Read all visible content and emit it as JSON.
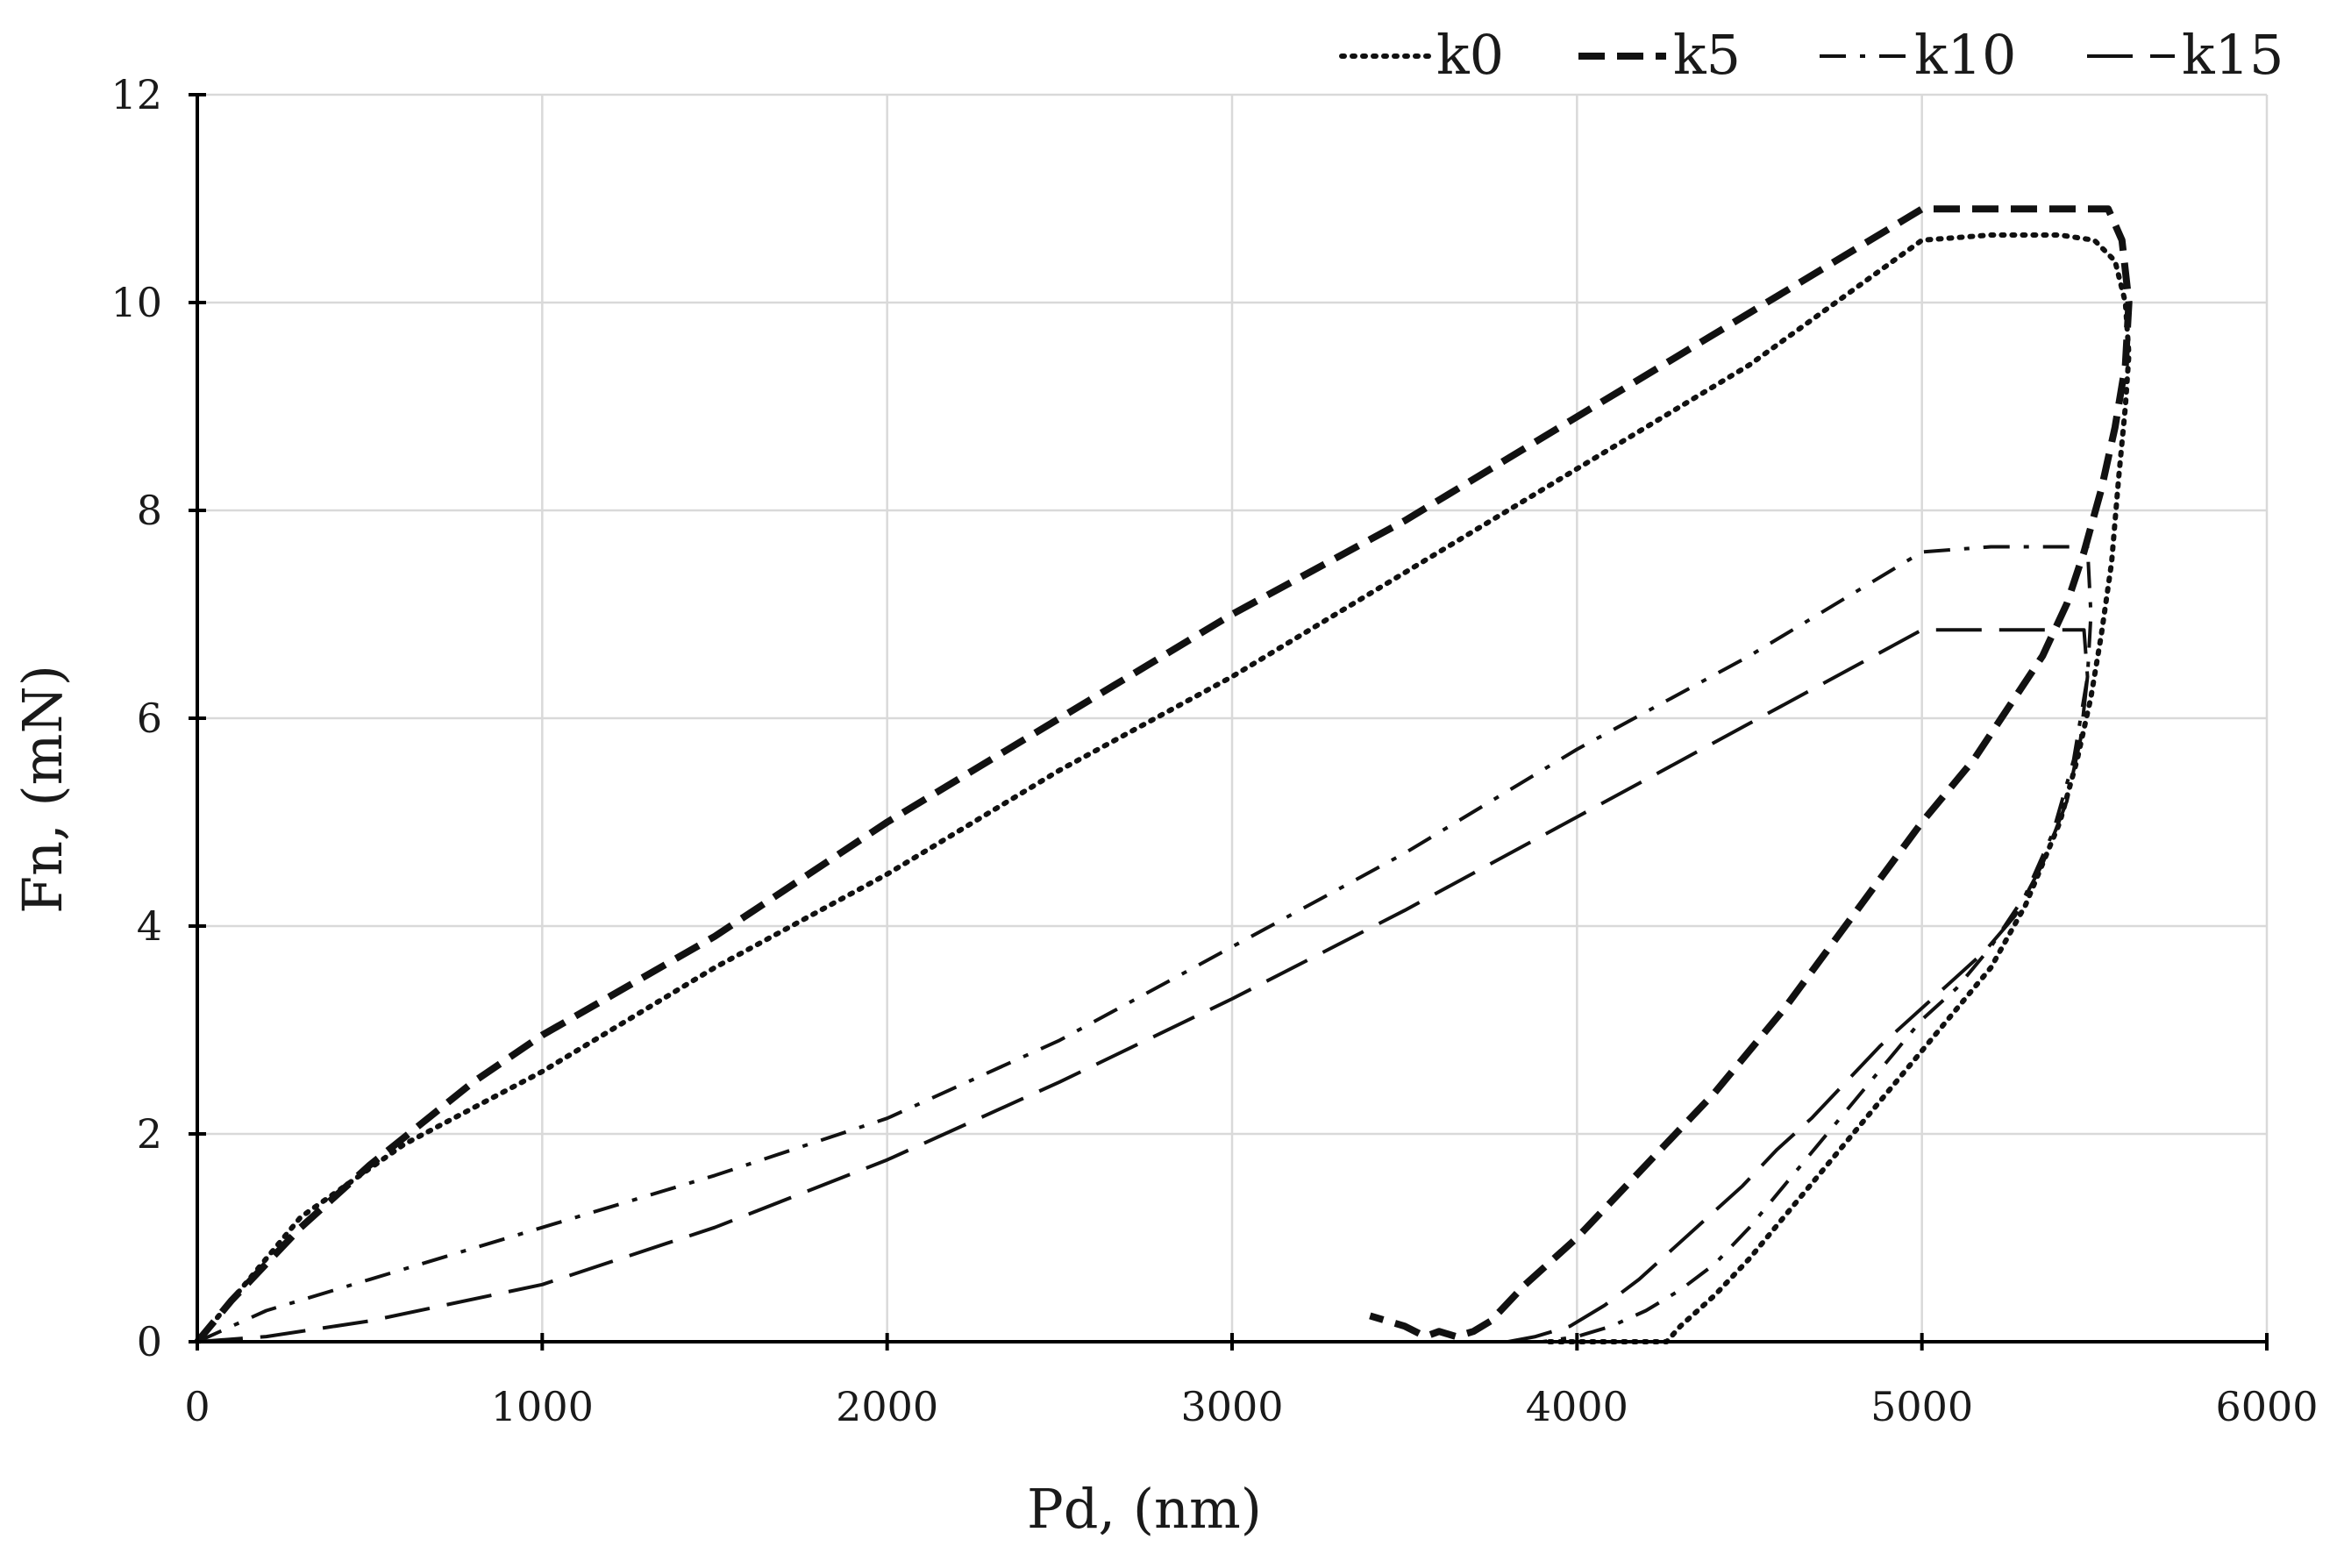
{
  "chart_data": {
    "type": "line",
    "title": "",
    "xlabel": "Pd, (nm)",
    "ylabel": "Fn, (mN)",
    "xlim": [
      0,
      6000
    ],
    "ylim": [
      0,
      12
    ],
    "xticks": [
      0,
      1000,
      2000,
      3000,
      4000,
      5000,
      6000
    ],
    "yticks": [
      0,
      2,
      4,
      6,
      8,
      10,
      12
    ],
    "xtick_labels": [
      "0",
      "1000",
      "2000",
      "3000",
      "4000",
      "5000",
      "6000"
    ],
    "ytick_labels": [
      "0",
      "2",
      "4",
      "6",
      "8",
      "10",
      "12"
    ],
    "grid": true,
    "legend_position": "top-right",
    "line_color": "#111111",
    "series": [
      {
        "name": "k0",
        "style": "dotted",
        "x": [
          0,
          100,
          300,
          600,
          1000,
          1500,
          2000,
          2500,
          3000,
          3500,
          4000,
          4500,
          5000,
          5200,
          5400,
          5500,
          5560,
          5590,
          5600,
          5590,
          5570,
          5550,
          5520,
          5490,
          5450,
          5400,
          5300,
          5200,
          5100,
          5000,
          4900,
          4800,
          4700,
          4600,
          4500,
          4400,
          4300,
          4260,
          4100,
          3900
        ],
        "y": [
          0,
          0.4,
          1.2,
          1.9,
          2.6,
          3.6,
          4.5,
          5.5,
          6.4,
          7.4,
          8.4,
          9.4,
          10.6,
          10.65,
          10.65,
          10.6,
          10.4,
          10.0,
          9.5,
          9.0,
          8.3,
          7.5,
          6.8,
          6.2,
          5.6,
          5.0,
          4.2,
          3.6,
          3.2,
          2.8,
          2.4,
          2.0,
          1.6,
          1.2,
          0.8,
          0.45,
          0.15,
          0.0,
          0.0,
          0.0
        ]
      },
      {
        "name": "k5",
        "style": "dashed",
        "x": [
          0,
          100,
          300,
          500,
          800,
          1000,
          1500,
          2000,
          2500,
          3000,
          3500,
          4000,
          4500,
          5000,
          5200,
          5400,
          5540,
          5580,
          5600,
          5590,
          5560,
          5520,
          5470,
          5420,
          5350,
          5250,
          5150,
          5000,
          4800,
          4600,
          4400,
          4200,
          4000,
          3850,
          3750,
          3700,
          3650,
          3600,
          3560,
          3500,
          3400
        ],
        "y": [
          0,
          0.4,
          1.1,
          1.7,
          2.5,
          2.95,
          3.9,
          5.0,
          6.0,
          7.0,
          7.9,
          8.9,
          9.9,
          10.9,
          10.9,
          10.9,
          10.9,
          10.6,
          10.0,
          9.4,
          8.8,
          8.2,
          7.6,
          7.1,
          6.6,
          6.1,
          5.6,
          5.0,
          4.1,
          3.2,
          2.4,
          1.7,
          1.0,
          0.55,
          0.2,
          0.1,
          0.05,
          0.1,
          0.05,
          0.15,
          0.25
        ]
      },
      {
        "name": "k10",
        "style": "dash-dot",
        "x": [
          0,
          200,
          500,
          1000,
          1500,
          2000,
          2500,
          3000,
          3500,
          4000,
          4500,
          5000,
          5200,
          5400,
          5480,
          5490,
          5480,
          5440,
          5380,
          5300,
          5200,
          5100,
          5000,
          4900,
          4800,
          4700,
          4600,
          4500,
          4400,
          4300,
          4200,
          4100,
          4000,
          3900,
          3800
        ],
        "y": [
          0,
          0.3,
          0.6,
          1.1,
          1.6,
          2.15,
          2.9,
          3.8,
          4.7,
          5.7,
          6.6,
          7.6,
          7.65,
          7.65,
          7.65,
          7.0,
          6.4,
          5.6,
          4.9,
          4.3,
          3.8,
          3.4,
          3.1,
          2.7,
          2.3,
          1.9,
          1.5,
          1.1,
          0.75,
          0.5,
          0.3,
          0.15,
          0.05,
          0.0,
          0.0
        ]
      },
      {
        "name": "k15",
        "style": "long-dash",
        "x": [
          0,
          200,
          500,
          1000,
          1500,
          2000,
          2500,
          3000,
          3500,
          4000,
          4500,
          5000,
          5200,
          5400,
          5470,
          5480,
          5460,
          5420,
          5350,
          5270,
          5180,
          5080,
          4980,
          4880,
          4780,
          4680,
          4580,
          4480,
          4380,
          4280,
          4180,
          4080,
          3980,
          3880,
          3800,
          3750,
          3700
        ],
        "y": [
          0,
          0.05,
          0.2,
          0.55,
          1.1,
          1.75,
          2.5,
          3.3,
          4.15,
          5.05,
          5.95,
          6.85,
          6.85,
          6.85,
          6.85,
          6.4,
          5.8,
          5.2,
          4.6,
          4.1,
          3.75,
          3.45,
          3.15,
          2.85,
          2.5,
          2.15,
          1.85,
          1.5,
          1.2,
          0.9,
          0.6,
          0.35,
          0.15,
          0.05,
          0.0,
          0.0,
          0.0
        ]
      }
    ]
  }
}
